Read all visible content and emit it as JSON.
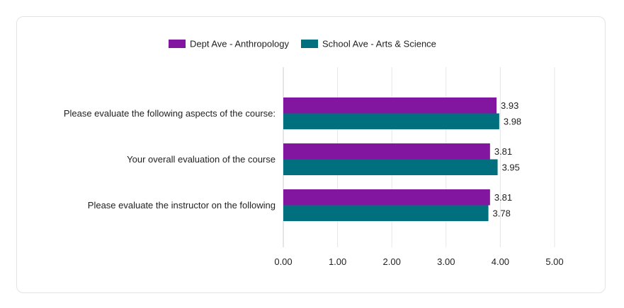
{
  "chart_data": {
    "type": "bar",
    "orientation": "horizontal",
    "categories": [
      "Please evaluate the following aspects of the course:",
      "Your overall evaluation of the course",
      "Please evaluate the instructor on the following"
    ],
    "series": [
      {
        "name": "Dept Ave - Anthropology",
        "color": "#8216a0",
        "values": [
          3.93,
          3.81,
          3.81
        ],
        "labels": [
          "3.93",
          "3.81",
          "3.81"
        ]
      },
      {
        "name": "School Ave - Arts & Science",
        "color": "#00707f",
        "values": [
          3.98,
          3.95,
          3.78
        ],
        "labels": [
          "3.98",
          "3.95",
          "3.78"
        ]
      }
    ],
    "xlim": [
      0,
      5
    ],
    "xticks": [
      "0.00",
      "1.00",
      "2.00",
      "3.00",
      "4.00",
      "5.00"
    ],
    "title": "",
    "xlabel": "",
    "ylabel": "",
    "legend_position": "top-center",
    "grid": true
  }
}
